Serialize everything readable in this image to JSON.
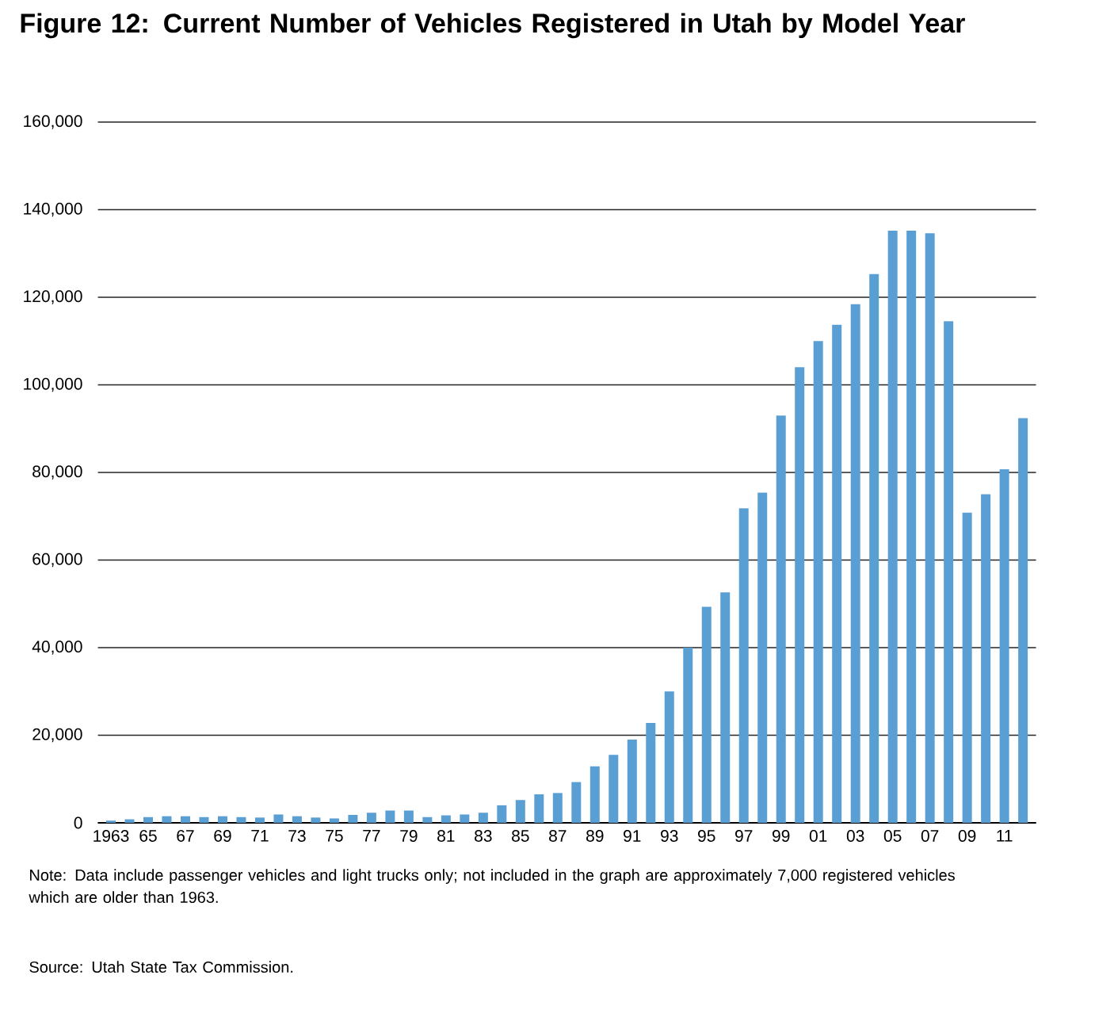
{
  "chart_data": {
    "type": "bar",
    "title": "Figure 12:  Current Number of Vehicles Registered in Utah by Model Year",
    "categories": [
      "1963",
      null,
      "65",
      null,
      "67",
      null,
      "69",
      null,
      "71",
      null,
      "73",
      null,
      "75",
      null,
      "77",
      null,
      "79",
      null,
      "81",
      null,
      "83",
      null,
      "85",
      null,
      "87",
      null,
      "89",
      null,
      "91",
      null,
      "93",
      null,
      "95",
      null,
      "97",
      null,
      "99",
      null,
      "01",
      null,
      "03",
      null,
      "05",
      null,
      "07",
      null,
      "09",
      null,
      "11",
      null
    ],
    "values": [
      500,
      800,
      1300,
      1500,
      1500,
      1300,
      1500,
      1300,
      1200,
      1900,
      1500,
      1200,
      1000,
      1800,
      2300,
      2800,
      2800,
      1300,
      1700,
      1900,
      2300,
      4000,
      5200,
      6500,
      6800,
      9300,
      12900,
      15500,
      19000,
      22800,
      30000,
      40000,
      49300,
      52600,
      71800,
      75400,
      93000,
      104000,
      110000,
      113700,
      118400,
      125300,
      135200,
      135200,
      134600,
      114500,
      70800,
      75000,
      80700,
      92400
    ],
    "color": "#5a9fd4",
    "ylim": [
      0,
      160000
    ],
    "yticks": [
      {
        "value": 0,
        "label": "0"
      },
      {
        "value": 20000,
        "label": "20,000"
      },
      {
        "value": 40000,
        "label": "40,000"
      },
      {
        "value": 60000,
        "label": "60,000"
      },
      {
        "value": 80000,
        "label": "80,000"
      },
      {
        "value": 100000,
        "label": "100,000"
      },
      {
        "value": 120000,
        "label": "120,000"
      },
      {
        "value": 140000,
        "label": "140,000"
      },
      {
        "value": 160000,
        "label": "160,000"
      }
    ],
    "grid": "y",
    "annotations": [
      "Note: Data include passenger vehicles and light trucks only; not included in the graph are approximately 7,000 registered vehicles which are older than 1963.",
      "Source: Utah State Tax Commission."
    ]
  }
}
